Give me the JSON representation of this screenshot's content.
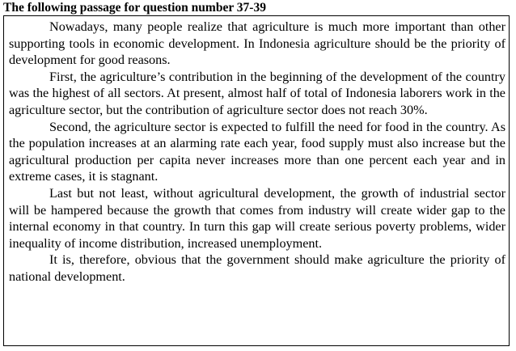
{
  "heading": "The following passage for question number 37-39",
  "paragraphs": [
    "Nowadays, many people realize that agriculture is much more important than other supporting tools in economic development. In Indonesia agriculture should be the priority of development for good reasons.",
    "First, the agriculture’s contribution in the beginning of the development of the country was the highest of all sectors. At present, almost half of total of Indonesia laborers work in the agriculture sector, but the contribution of agriculture sector does not reach 30%.",
    "Second, the agriculture sector is expected to fulfill the need for food in the country. As the population increases at an alarming rate each year, food supply must also increase but the agricultural production per capita never increases more than one percent each year and in extreme cases, it is stagnant.",
    "Last but not least, without agricultural development, the growth of industrial sector will be hampered because the growth that comes from industry will create wider gap to the internal economy in that country. In turn this gap will create serious poverty problems, wider inequality of income distribution, increased unemployment.",
    "It is, therefore, obvious that the government should make agriculture the priority of national development."
  ]
}
